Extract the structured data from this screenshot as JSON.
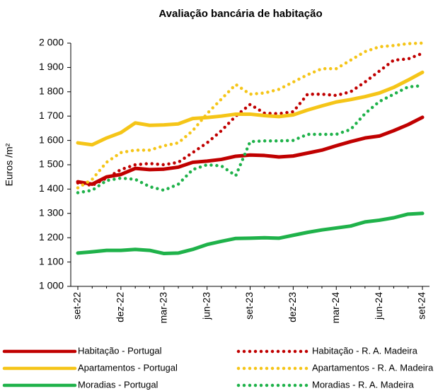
{
  "chart_data": {
    "type": "line",
    "title": "Avaliação bancária de habitação",
    "y_label": "Euros /m²",
    "categories": [
      "set-22",
      null,
      null,
      "dez-22",
      null,
      null,
      "mar-23",
      null,
      null,
      "jun-23",
      null,
      null,
      "set-23",
      null,
      null,
      "dez-23",
      null,
      null,
      "mar-24",
      null,
      null,
      "jun-24",
      null,
      null,
      "set-24"
    ],
    "ylim": [
      1000,
      2000
    ],
    "yticks": [
      {
        "value": 1000,
        "label": "1 000"
      },
      {
        "value": 1100,
        "label": "1 100"
      },
      {
        "value": 1200,
        "label": "1 200"
      },
      {
        "value": 1300,
        "label": "1 300"
      },
      {
        "value": 1400,
        "label": "1 400"
      },
      {
        "value": 1500,
        "label": "1 500"
      },
      {
        "value": 1600,
        "label": "1 600"
      },
      {
        "value": 1700,
        "label": "1 700"
      },
      {
        "value": 1800,
        "label": "1 800"
      },
      {
        "value": 1900,
        "label": "1 900"
      },
      {
        "value": 2000,
        "label": "2 000"
      }
    ],
    "grid": false,
    "series": [
      {
        "name": "Habitação - Portugal",
        "color": "#c00000",
        "style": "solid",
        "values": [
          1430,
          1420,
          1450,
          1460,
          1485,
          1480,
          1482,
          1490,
          1510,
          1515,
          1522,
          1535,
          1540,
          1538,
          1532,
          1536,
          1548,
          1560,
          1578,
          1595,
          1610,
          1618,
          1640,
          1665,
          1695
        ]
      },
      {
        "name": "Habitação - R. A. Madeira",
        "color": "#c00000",
        "style": "dotted",
        "values": [
          1425,
          1415,
          1445,
          1480,
          1500,
          1505,
          1500,
          1510,
          1550,
          1590,
          1640,
          1700,
          1748,
          1712,
          1710,
          1718,
          1790,
          1790,
          1785,
          1800,
          1840,
          1885,
          1930,
          1935,
          1958
        ]
      },
      {
        "name": "Apartamentos - Portugal",
        "color": "#f5c518",
        "style": "solid",
        "values": [
          1590,
          1582,
          1610,
          1632,
          1672,
          1662,
          1664,
          1668,
          1690,
          1694,
          1700,
          1708,
          1708,
          1702,
          1698,
          1705,
          1725,
          1742,
          1758,
          1768,
          1780,
          1795,
          1818,
          1848,
          1880
        ]
      },
      {
        "name": "Apartamentos - R. A. Madeira",
        "color": "#f5c518",
        "style": "dotted",
        "values": [
          1405,
          1440,
          1510,
          1550,
          1560,
          1560,
          1578,
          1590,
          1640,
          1710,
          1770,
          1830,
          1790,
          1795,
          1810,
          1840,
          1870,
          1895,
          1895,
          1930,
          1965,
          1985,
          1990,
          1998,
          2000
        ]
      },
      {
        "name": "Moradias - Portugal",
        "color": "#1fb24a",
        "style": "solid",
        "values": [
          1137,
          1142,
          1148,
          1148,
          1152,
          1148,
          1135,
          1137,
          1152,
          1172,
          1185,
          1197,
          1198,
          1200,
          1198,
          1210,
          1222,
          1232,
          1240,
          1248,
          1265,
          1272,
          1282,
          1297,
          1300
        ]
      },
      {
        "name": "Moradias - R. A. Madeira",
        "color": "#1fb24a",
        "style": "dotted",
        "values": [
          1385,
          1395,
          1435,
          1445,
          1440,
          1410,
          1395,
          1420,
          1480,
          1500,
          1495,
          1455,
          1595,
          1598,
          1598,
          1600,
          1625,
          1625,
          1625,
          1645,
          1710,
          1760,
          1790,
          1820,
          1825
        ]
      }
    ]
  }
}
